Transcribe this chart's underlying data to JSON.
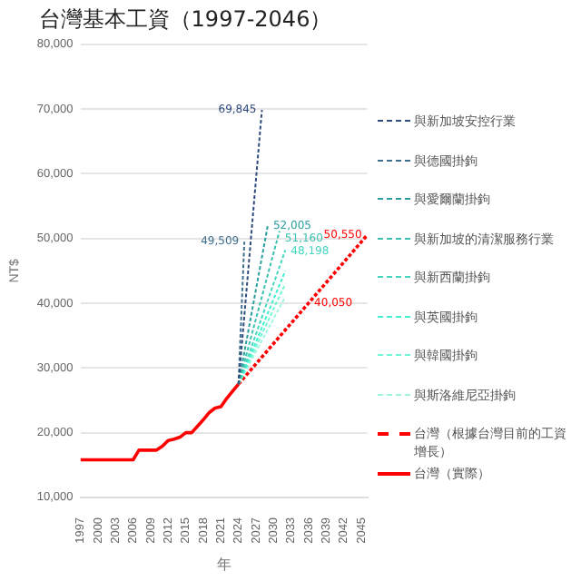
{
  "chart_data": {
    "type": "line",
    "title": "台灣基本工資（1997-2046）",
    "xlabel": "年",
    "ylabel": "NT$",
    "xlim": [
      1997,
      2046
    ],
    "xticks": [
      1997,
      2000,
      2003,
      2006,
      2009,
      2012,
      2015,
      2018,
      2021,
      2024,
      2027,
      2030,
      2033,
      2036,
      2039,
      2042,
      2045
    ],
    "ylim": [
      10000,
      80000
    ],
    "yticks": [
      {
        "value": 10000,
        "label": "10,000"
      },
      {
        "value": 20000,
        "label": "20,000"
      },
      {
        "value": 30000,
        "label": "30,000"
      },
      {
        "value": 40000,
        "label": "40,000"
      },
      {
        "value": 50000,
        "label": "50,000"
      },
      {
        "value": 60000,
        "label": "60,000"
      },
      {
        "value": 70000,
        "label": "70,000"
      },
      {
        "value": 80000,
        "label": "80,000"
      }
    ],
    "grid": "y",
    "legend": "right",
    "marker": "none",
    "series": [
      {
        "name": "與新加坡安控行業",
        "color": "#2f4b7c",
        "line_style": "dashed",
        "x": [
          2024,
          2028
        ],
        "values": [
          27500,
          69845
        ],
        "value_labels": [
          null,
          "69,845"
        ]
      },
      {
        "name": "與德國掛鉤",
        "color": "#3f6f8f",
        "line_style": "dashed",
        "x": [
          2024,
          2025
        ],
        "values": [
          27500,
          49509
        ],
        "value_labels": [
          null,
          "49,509"
        ]
      },
      {
        "name": "與愛爾蘭掛鉤",
        "color": "#2a9d9d",
        "line_style": "dashed",
        "x": [
          2024,
          2029
        ],
        "values": [
          27500,
          52005
        ],
        "value_labels": [
          null,
          "52,005"
        ]
      },
      {
        "name": "與新加坡的清潔服務行業",
        "color": "#3cc0b0",
        "line_style": "dashed",
        "x": [
          2024,
          2031
        ],
        "values": [
          27500,
          51160
        ],
        "value_labels": [
          null,
          "51,160"
        ]
      },
      {
        "name": "與新西蘭掛鉤",
        "color": "#45d6c0",
        "line_style": "dashed",
        "x": [
          2024,
          2032
        ],
        "values": [
          27500,
          48198
        ],
        "value_labels": [
          null,
          "48,198"
        ]
      },
      {
        "name": "與英國掛鉤",
        "color": "#40f0d0",
        "line_style": "dashed",
        "x": [
          2024,
          2032
        ],
        "values": [
          27500,
          45000
        ]
      },
      {
        "name": "與韓國掛鉤",
        "color": "#70f5d5",
        "line_style": "dashed",
        "x": [
          2024,
          2032
        ],
        "values": [
          27500,
          43000
        ]
      },
      {
        "name": "與斯洛維尼亞掛鉤",
        "color": "#a0f5e0",
        "line_style": "dashed",
        "x": [
          2024,
          2032
        ],
        "values": [
          27500,
          41000
        ]
      },
      {
        "name": "台灣（根據台灣目前的工資增長）",
        "color": "#ff0000",
        "line_style": "dashed",
        "x": [
          2024,
          2036,
          2046
        ],
        "values": [
          27500,
          40050,
          50550
        ],
        "value_labels": [
          null,
          "40,050",
          "50,550"
        ]
      },
      {
        "name": "台灣（實際）",
        "color": "#ff0000",
        "line_style": "solid",
        "x": [
          1997,
          2006,
          2007,
          2010,
          2011,
          2012,
          2013,
          2014,
          2015,
          2016,
          2017,
          2018,
          2019,
          2020,
          2021,
          2022,
          2023,
          2024
        ],
        "values": [
          15800,
          15800,
          17300,
          17300,
          17900,
          18800,
          19000,
          19300,
          20000,
          20000,
          21000,
          22000,
          23100,
          23800,
          24000,
          25300,
          26400,
          27500
        ]
      }
    ]
  }
}
